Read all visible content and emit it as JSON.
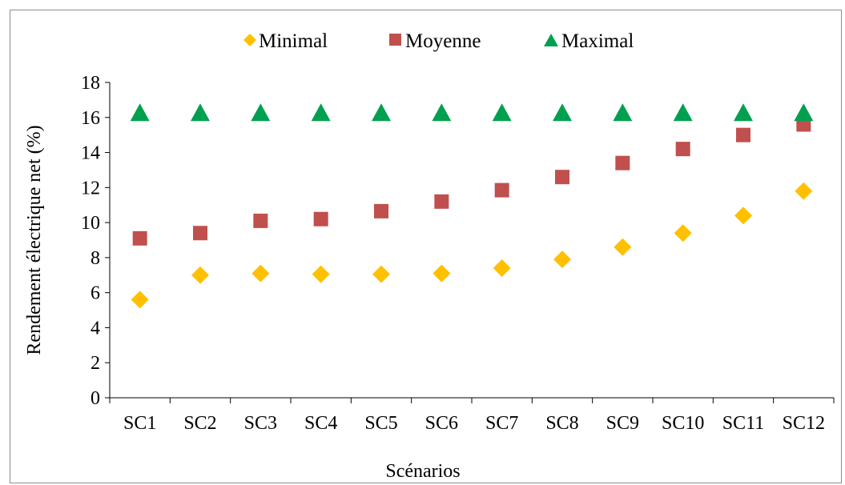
{
  "chart_data": {
    "type": "scatter",
    "title": "",
    "xlabel": "Scénarios",
    "ylabel": "Rendement électrique net (%)",
    "categories": [
      "SC1",
      "SC2",
      "SC3",
      "SC4",
      "SC5",
      "SC6",
      "SC7",
      "SC8",
      "SC9",
      "SC10",
      "SC11",
      "SC12"
    ],
    "ylim": [
      0,
      18
    ],
    "yticks": [
      "0",
      "2",
      "4",
      "6",
      "8",
      "10",
      "12",
      "14",
      "16",
      "18"
    ],
    "grid": false,
    "legend_position": "top",
    "series": [
      {
        "name": "Minimal",
        "marker": "diamond",
        "color": "#FFC000",
        "values": [
          5.6,
          7.0,
          7.1,
          7.05,
          7.05,
          7.1,
          7.4,
          7.9,
          8.6,
          9.4,
          10.4,
          11.8
        ]
      },
      {
        "name": "Moyenne",
        "marker": "square",
        "color": "#C0504D",
        "values": [
          9.1,
          9.4,
          10.1,
          10.2,
          10.65,
          11.2,
          11.85,
          12.6,
          13.4,
          14.2,
          15.0,
          15.6
        ]
      },
      {
        "name": "Maximal",
        "marker": "triangle",
        "color": "#00A050",
        "values": [
          16.25,
          16.25,
          16.25,
          16.25,
          16.25,
          16.25,
          16.25,
          16.25,
          16.25,
          16.25,
          16.25,
          16.25
        ]
      }
    ]
  }
}
